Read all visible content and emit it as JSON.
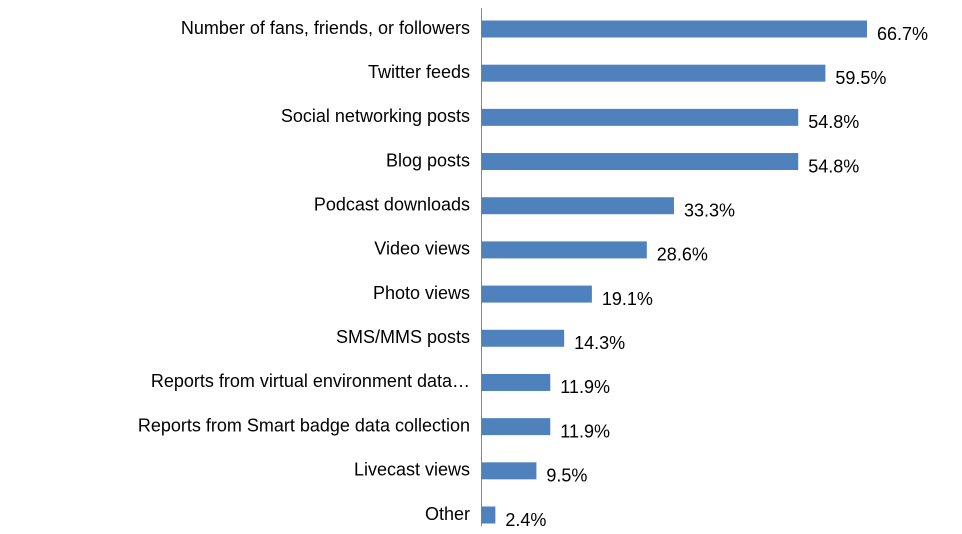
{
  "chart_data": {
    "type": "bar",
    "orientation": "horizontal",
    "color": "#4f81bd",
    "categories": [
      "Number of fans, friends, or followers",
      "Twitter feeds",
      "Social networking posts",
      "Blog posts",
      "Podcast downloads",
      "Video views",
      "Photo views",
      "SMS/MMS posts",
      "Reports from virtual environment data…",
      "Reports from Smart badge data collection",
      "Livecast views",
      "Other"
    ],
    "values": [
      66.7,
      59.5,
      54.8,
      54.8,
      33.3,
      28.6,
      19.1,
      14.3,
      11.9,
      11.9,
      9.5,
      2.4
    ],
    "value_labels": [
      "66.7%",
      "59.5%",
      "54.8%",
      "54.8%",
      "33.3%",
      "28.6%",
      "19.1%",
      "14.3%",
      "11.9%",
      "11.9%",
      "9.5%",
      "2.4%"
    ]
  }
}
